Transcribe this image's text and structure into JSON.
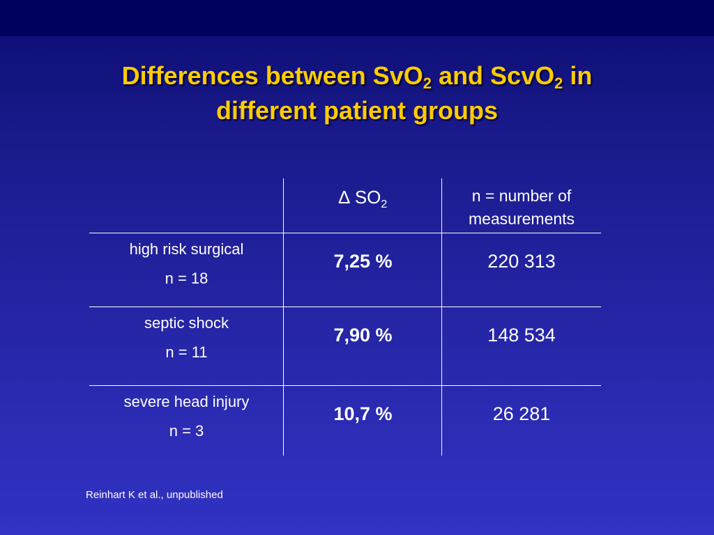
{
  "title": [
    "Differences between SvO",
    "2",
    " and ScvO",
    "2",
    " in",
    "different patient groups"
  ],
  "table": {
    "header": [
      [
        "∆ SO",
        "2"
      ],
      [
        "n = number of",
        "measurements"
      ]
    ],
    "rows": [
      [
        [
          "high risk surgical",
          "n = 18"
        ],
        "7,25 %",
        "220 313"
      ],
      [
        [
          "septic shock",
          "n = 11"
        ],
        "7,90 %",
        "148 534"
      ],
      [
        [
          "severe head injury",
          "n = 3"
        ],
        "10,7 %",
        "26 281"
      ]
    ]
  },
  "footnote": "Reinhart K et al., unpublished"
}
